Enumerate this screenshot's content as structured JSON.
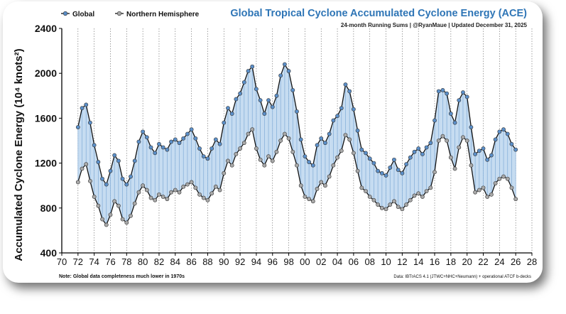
{
  "chart_data": {
    "type": "line",
    "title": "Global Tropical Cyclone Accumulated Cyclone Energy (ACE)",
    "subtitle": "24-month Running Sums | @RyanMaue | Updated December 31, 2025",
    "ylabel": "Accumulated Cyclone Energy (10⁴ knots²)",
    "xlabel": "",
    "ylim": [
      400,
      2400
    ],
    "xlim": [
      1970,
      2028
    ],
    "yticks": [
      "400",
      "800",
      "1200",
      "1600",
      "2000",
      "2400"
    ],
    "xticks": [
      "70",
      "72",
      "74",
      "76",
      "78",
      "80",
      "82",
      "84",
      "86",
      "88",
      "90",
      "92",
      "94",
      "96",
      "98",
      "00",
      "02",
      "04",
      "06",
      "08",
      "10",
      "12",
      "14",
      "16",
      "18",
      "20",
      "22",
      "24",
      "26",
      "28"
    ],
    "grid": "vertical dotted",
    "legend": {
      "position": "top-left",
      "entries": [
        "Global",
        "Northern Hemisphere"
      ]
    },
    "note": "Note:  Global data completeness much lower in 1970s",
    "source": "Data: IBTrACS 4.1 (JTWC+NHC+Neumann) + operational ATCF b-decks",
    "series": [
      {
        "name": "Global",
        "color": "#5b8fc9",
        "x": [
          1972.0,
          1972.5,
          1973.0,
          1973.5,
          1974.0,
          1974.5,
          1975.0,
          1975.5,
          1976.0,
          1976.5,
          1977.0,
          1977.5,
          1978.0,
          1978.5,
          1979.0,
          1979.5,
          1980.0,
          1980.5,
          1981.0,
          1981.5,
          1982.0,
          1982.5,
          1983.0,
          1983.5,
          1984.0,
          1984.5,
          1985.0,
          1985.5,
          1986.0,
          1986.5,
          1987.0,
          1987.5,
          1988.0,
          1988.5,
          1989.0,
          1989.5,
          1990.0,
          1990.5,
          1991.0,
          1991.5,
          1992.0,
          1992.5,
          1993.0,
          1993.5,
          1994.0,
          1994.5,
          1995.0,
          1995.5,
          1996.0,
          1996.5,
          1997.0,
          1997.5,
          1998.0,
          1998.5,
          1999.0,
          1999.5,
          2000.0,
          2000.5,
          2001.0,
          2001.5,
          2002.0,
          2002.5,
          2003.0,
          2003.5,
          2004.0,
          2004.5,
          2005.0,
          2005.5,
          2006.0,
          2006.5,
          2007.0,
          2007.5,
          2008.0,
          2008.5,
          2009.0,
          2009.5,
          2010.0,
          2010.5,
          2011.0,
          2011.5,
          2012.0,
          2012.5,
          2013.0,
          2013.5,
          2014.0,
          2014.5,
          2015.0,
          2015.5,
          2016.0,
          2016.5,
          2017.0,
          2017.5,
          2018.0,
          2018.5,
          2019.0,
          2019.5,
          2020.0,
          2020.5,
          2021.0,
          2021.5,
          2022.0,
          2022.5,
          2023.0,
          2023.5,
          2024.0,
          2024.5,
          2025.0,
          2025.5,
          2026.0
        ],
        "values": [
          1520,
          1690,
          1720,
          1560,
          1360,
          1210,
          1060,
          1010,
          1130,
          1270,
          1220,
          1060,
          1010,
          1080,
          1220,
          1390,
          1480,
          1430,
          1340,
          1290,
          1370,
          1340,
          1320,
          1390,
          1410,
          1380,
          1420,
          1460,
          1500,
          1420,
          1330,
          1260,
          1240,
          1330,
          1410,
          1370,
          1560,
          1690,
          1640,
          1770,
          1820,
          1920,
          2020,
          2060,
          1860,
          1760,
          1640,
          1760,
          1700,
          1800,
          1980,
          2080,
          2020,
          1850,
          1660,
          1410,
          1260,
          1210,
          1180,
          1360,
          1420,
          1380,
          1460,
          1580,
          1620,
          1690,
          1900,
          1840,
          1680,
          1490,
          1320,
          1290,
          1240,
          1200,
          1130,
          1110,
          1090,
          1160,
          1230,
          1140,
          1110,
          1190,
          1250,
          1300,
          1330,
          1280,
          1340,
          1380,
          1580,
          1840,
          1850,
          1820,
          1640,
          1560,
          1760,
          1830,
          1790,
          1520,
          1280,
          1310,
          1330,
          1230,
          1270,
          1410,
          1480,
          1500,
          1460,
          1370,
          1320
        ]
      },
      {
        "name": "Northern Hemisphere",
        "color": "#a9a9a9",
        "x": [
          1972.0,
          1972.5,
          1973.0,
          1973.5,
          1974.0,
          1974.5,
          1975.0,
          1975.5,
          1976.0,
          1976.5,
          1977.0,
          1977.5,
          1978.0,
          1978.5,
          1979.0,
          1979.5,
          1980.0,
          1980.5,
          1981.0,
          1981.5,
          1982.0,
          1982.5,
          1983.0,
          1983.5,
          1984.0,
          1984.5,
          1985.0,
          1985.5,
          1986.0,
          1986.5,
          1987.0,
          1987.5,
          1988.0,
          1988.5,
          1989.0,
          1989.5,
          1990.0,
          1990.5,
          1991.0,
          1991.5,
          1992.0,
          1992.5,
          1993.0,
          1993.5,
          1994.0,
          1994.5,
          1995.0,
          1995.5,
          1996.0,
          1996.5,
          1997.0,
          1997.5,
          1998.0,
          1998.5,
          1999.0,
          1999.5,
          2000.0,
          2000.5,
          2001.0,
          2001.5,
          2002.0,
          2002.5,
          2003.0,
          2003.5,
          2004.0,
          2004.5,
          2005.0,
          2005.5,
          2006.0,
          2006.5,
          2007.0,
          2007.5,
          2008.0,
          2008.5,
          2009.0,
          2009.5,
          2010.0,
          2010.5,
          2011.0,
          2011.5,
          2012.0,
          2012.5,
          2013.0,
          2013.5,
          2014.0,
          2014.5,
          2015.0,
          2015.5,
          2016.0,
          2016.5,
          2017.0,
          2017.5,
          2018.0,
          2018.5,
          2019.0,
          2019.5,
          2020.0,
          2020.5,
          2021.0,
          2021.5,
          2022.0,
          2022.5,
          2023.0,
          2023.5,
          2024.0,
          2024.5,
          2025.0,
          2025.5,
          2026.0
        ],
        "values": [
          1030,
          1150,
          1190,
          1040,
          900,
          820,
          700,
          650,
          740,
          860,
          820,
          700,
          670,
          730,
          840,
          940,
          1000,
          960,
          890,
          870,
          920,
          900,
          880,
          940,
          960,
          940,
          990,
          1010,
          1030,
          980,
          920,
          890,
          870,
          930,
          990,
          960,
          1110,
          1220,
          1180,
          1280,
          1330,
          1380,
          1460,
          1500,
          1330,
          1230,
          1180,
          1260,
          1220,
          1300,
          1400,
          1460,
          1420,
          1300,
          1180,
          1000,
          900,
          880,
          860,
          970,
          1030,
          1000,
          1080,
          1180,
          1250,
          1310,
          1450,
          1410,
          1290,
          1130,
          980,
          950,
          900,
          870,
          830,
          800,
          790,
          830,
          860,
          810,
          790,
          830,
          870,
          910,
          930,
          900,
          950,
          980,
          1120,
          1400,
          1440,
          1400,
          1250,
          1150,
          1340,
          1430,
          1400,
          1180,
          940,
          960,
          980,
          900,
          920,
          1020,
          1060,
          1080,
          1060,
          980,
          880
        ]
      }
    ]
  }
}
